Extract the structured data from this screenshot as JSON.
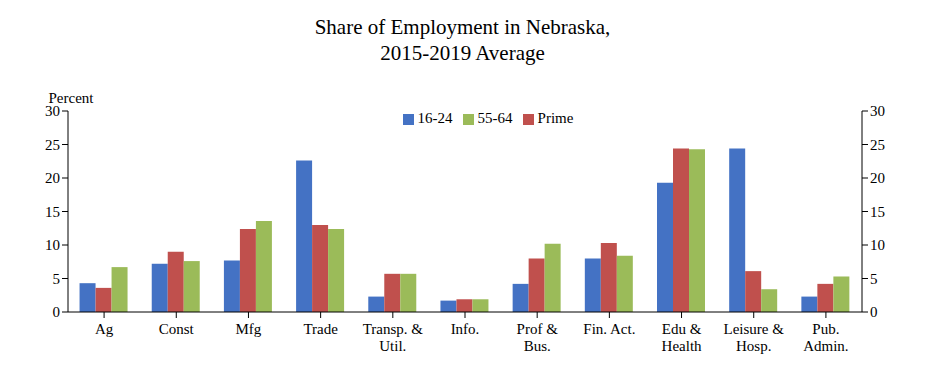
{
  "chart_data": {
    "type": "bar",
    "title": "Share of Employment in Nebraska,\n2015-2019 Average",
    "y_label": "Percent",
    "categories": [
      "Ag",
      "Const",
      "Mfg",
      "Trade",
      "Transp. &\nUtil.",
      "Info.",
      "Prof &\nBus.",
      "Fin. Act.",
      "Edu &\nHealth",
      "Leisure &\nHosp.",
      "Pub.\nAdmin."
    ],
    "series": [
      {
        "name": "16-24",
        "color": "#4472c4",
        "values": [
          4.3,
          7.2,
          7.7,
          22.6,
          2.3,
          1.7,
          4.2,
          8.0,
          19.3,
          24.4,
          2.3
        ]
      },
      {
        "name": "Prime",
        "color": "#c0504d",
        "values": [
          3.6,
          9.0,
          12.4,
          13.0,
          5.7,
          1.9,
          8.0,
          10.3,
          24.4,
          6.1,
          4.2
        ]
      },
      {
        "name": "55-64",
        "color": "#9bbb59",
        "values": [
          6.7,
          7.6,
          13.6,
          12.4,
          5.7,
          1.9,
          10.2,
          8.4,
          24.3,
          3.4,
          5.3
        ]
      }
    ],
    "ylim": [
      0,
      30
    ],
    "yticks": [
      0,
      5,
      10,
      15,
      20,
      25,
      30
    ],
    "y2lim": [
      0,
      30
    ],
    "y2ticks": [
      0,
      5,
      10,
      15,
      20,
      25,
      30
    ],
    "grid": false,
    "legend": "top"
  }
}
